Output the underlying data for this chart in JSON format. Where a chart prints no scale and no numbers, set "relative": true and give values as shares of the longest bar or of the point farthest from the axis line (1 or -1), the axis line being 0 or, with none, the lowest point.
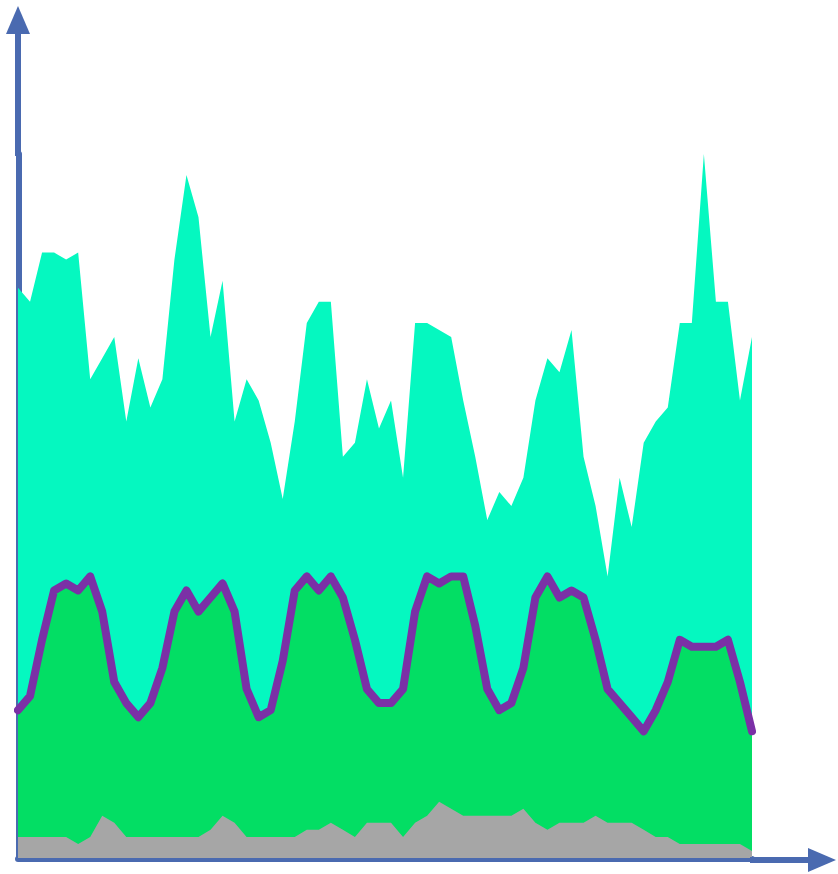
{
  "chart_data": {
    "type": "area",
    "relative": true,
    "marker": "none",
    "grid": false,
    "categories": [
      null,
      null,
      null,
      null,
      null,
      null,
      null,
      null,
      null,
      null,
      null,
      null,
      null,
      null,
      null,
      null,
      null,
      null,
      null,
      null,
      null,
      null,
      null,
      null,
      null,
      null,
      null,
      null,
      null,
      null,
      null,
      null,
      null,
      null,
      null,
      null,
      null,
      null,
      null,
      null,
      null,
      null,
      null,
      null,
      null,
      null,
      null,
      null,
      null,
      null,
      null,
      null,
      null,
      null,
      null,
      null,
      null,
      null,
      null,
      null,
      null,
      null
    ],
    "series": [
      {
        "color": "#05f8c0",
        "values": [
          0.81,
          0.79,
          0.86,
          0.86,
          0.85,
          0.86,
          0.68,
          0.71,
          0.74,
          0.62,
          0.71,
          0.64,
          0.68,
          0.85,
          0.97,
          0.91,
          0.74,
          0.82,
          0.62,
          0.68,
          0.65,
          0.59,
          0.51,
          0.62,
          0.76,
          0.79,
          0.79,
          0.57,
          0.59,
          0.68,
          0.61,
          0.65,
          0.54,
          0.76,
          0.76,
          0.75,
          0.74,
          0.65,
          0.57,
          0.48,
          0.52,
          0.5,
          0.54,
          0.65,
          0.71,
          0.69,
          0.75,
          0.57,
          0.5,
          0.4,
          0.54,
          0.47,
          0.59,
          0.62,
          0.64,
          0.76,
          0.76,
          1,
          0.79,
          0.79,
          0.65,
          0.74
        ]
      },
      {
        "color": "#03de64",
        "values": [
          0.21,
          0.23,
          0.31,
          0.38,
          0.39,
          0.38,
          0.4,
          0.35,
          0.25,
          0.22,
          0.2,
          0.22,
          0.27,
          0.35,
          0.38,
          0.35,
          0.37,
          0.39,
          0.35,
          0.24,
          0.2,
          0.21,
          0.28,
          0.38,
          0.4,
          0.38,
          0.4,
          0.37,
          0.31,
          0.24,
          0.22,
          0.22,
          0.24,
          0.35,
          0.4,
          0.39,
          0.4,
          0.4,
          0.33,
          0.24,
          0.21,
          0.22,
          0.27,
          0.37,
          0.4,
          0.37,
          0.38,
          0.37,
          0.31,
          0.24,
          0.22,
          0.2,
          0.18,
          0.21,
          0.25,
          0.31,
          0.3,
          0.3,
          0.3,
          0.31,
          0.25,
          0.18
        ]
      },
      {
        "color": "#a6a6a6",
        "values": [
          0.03,
          0.03,
          0.03,
          0.03,
          0.03,
          0.02,
          0.03,
          0.06,
          0.05,
          0.03,
          0.03,
          0.03,
          0.03,
          0.03,
          0.03,
          0.03,
          0.04,
          0.06,
          0.05,
          0.03,
          0.03,
          0.03,
          0.03,
          0.03,
          0.04,
          0.04,
          0.05,
          0.04,
          0.03,
          0.05,
          0.05,
          0.05,
          0.03,
          0.05,
          0.06,
          0.08,
          0.07,
          0.06,
          0.06,
          0.06,
          0.06,
          0.06,
          0.07,
          0.05,
          0.04,
          0.05,
          0.05,
          0.05,
          0.06,
          0.05,
          0.05,
          0.05,
          0.04,
          0.03,
          0.03,
          0.02,
          0.02,
          0.02,
          0.02,
          0.02,
          0.02,
          0.01
        ]
      },
      {
        "type": "line",
        "color": "#7b30a6",
        "values": [
          0.21,
          0.23,
          0.31,
          0.38,
          0.39,
          0.38,
          0.4,
          0.35,
          0.25,
          0.22,
          0.2,
          0.22,
          0.27,
          0.35,
          0.38,
          0.35,
          0.37,
          0.39,
          0.35,
          0.24,
          0.2,
          0.21,
          0.28,
          0.38,
          0.4,
          0.38,
          0.4,
          0.37,
          0.31,
          0.24,
          0.22,
          0.22,
          0.24,
          0.35,
          0.4,
          0.39,
          0.4,
          0.4,
          0.33,
          0.24,
          0.21,
          0.22,
          0.27,
          0.37,
          0.4,
          0.37,
          0.38,
          0.37,
          0.31,
          0.24,
          0.22,
          0.2,
          0.18,
          0.21,
          0.25,
          0.31,
          0.3,
          0.3,
          0.3,
          0.31,
          0.25,
          0.18
        ]
      }
    ]
  }
}
